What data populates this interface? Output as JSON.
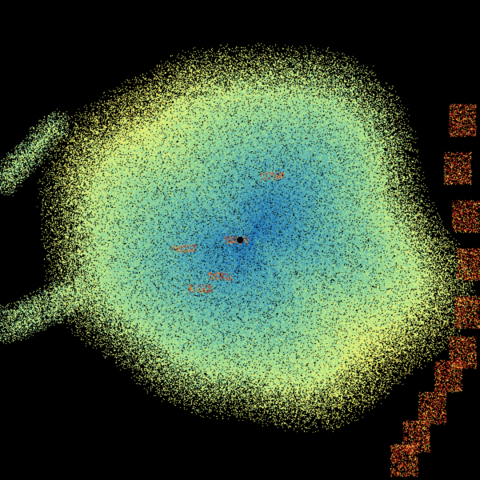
{
  "radar": {
    "background": "#000000",
    "palette": [
      "#1f6fae",
      "#3a93b8",
      "#5cb4ad",
      "#86cf9c",
      "#b4e488",
      "#e2f07a",
      "#f2e85e",
      "#f0a030",
      "#d84a1c",
      "#b01818"
    ],
    "site_marker": "radar-site-dot"
  }
}
